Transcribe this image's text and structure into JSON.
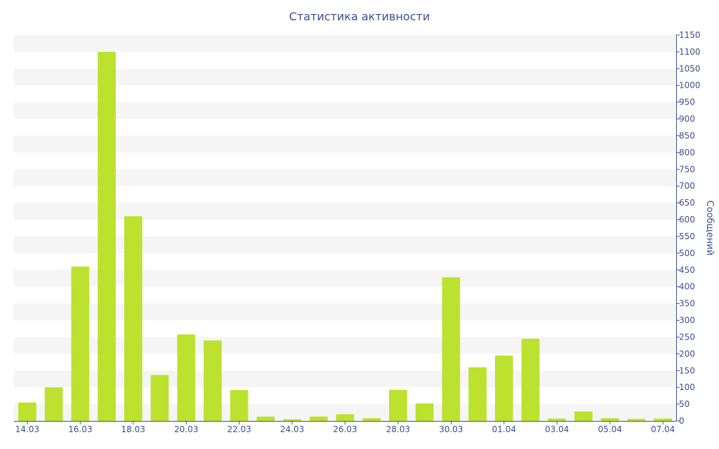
{
  "chart_data": {
    "type": "bar",
    "title": "Статистика активности",
    "xlabel": "",
    "ylabel": "Сообщений",
    "ylim": [
      0,
      1150
    ],
    "y_ticks": [
      0,
      50,
      100,
      150,
      200,
      250,
      300,
      350,
      400,
      450,
      500,
      550,
      600,
      650,
      700,
      750,
      800,
      850,
      900,
      950,
      1000,
      1050,
      1100,
      1150
    ],
    "y_axis_side": "right",
    "grid": "alternating horizontal bands",
    "categories": [
      "14.03",
      "15.03",
      "16.03",
      "17.03",
      "18.03",
      "19.03",
      "20.03",
      "21.03",
      "22.03",
      "23.03",
      "24.03",
      "25.03",
      "26.03",
      "27.03",
      "28.03",
      "29.03",
      "30.03",
      "31.03",
      "01.04",
      "02.04",
      "03.04",
      "04.04",
      "05.04",
      "06.04",
      "07.04"
    ],
    "x_tick_labels": [
      "14.03",
      "16.03",
      "18.03",
      "20.03",
      "22.03",
      "24.03",
      "26.03",
      "28.03",
      "30.03",
      "01.04",
      "03.04",
      "05.04",
      "07.04"
    ],
    "series": [
      {
        "values": [
          55,
          100,
          460,
          1100,
          610,
          137,
          258,
          240,
          92,
          13,
          5,
          13,
          20,
          8,
          93,
          52,
          428,
          160,
          195,
          245,
          7,
          28,
          8,
          6,
          7
        ]
      }
    ],
    "bar_color": "#bce22f",
    "band_color": "#f5f5f5",
    "axis_color": "#3a4f8f"
  }
}
